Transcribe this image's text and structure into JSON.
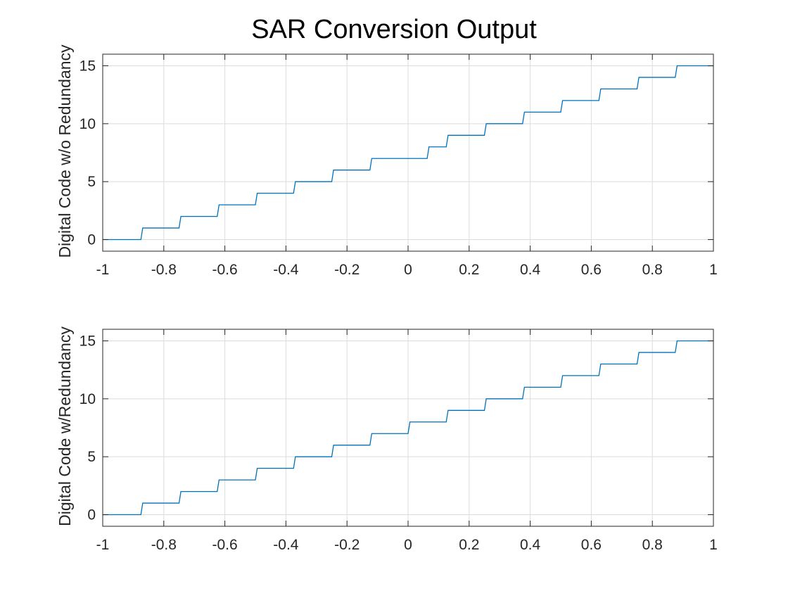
{
  "title": "SAR Conversion Output",
  "colors": {
    "series": "#0072bd",
    "grid": "#dcdcdc",
    "axes": "#262626",
    "background": "#ffffff"
  },
  "chart_data": [
    {
      "type": "line",
      "ylabel": "Digital Code w/o Redundancy",
      "xlim": [
        -1,
        1
      ],
      "ylim": [
        -1,
        16
      ],
      "xticks": [
        -1,
        -0.8,
        -0.6,
        -0.4,
        -0.2,
        0,
        0.2,
        0.4,
        0.6,
        0.8,
        1
      ],
      "xtick_labels": [
        "-1",
        "-0.8",
        "-0.6",
        "-0.4",
        "-0.2",
        "0",
        "0.2",
        "0.4",
        "0.6",
        "0.8",
        "1"
      ],
      "yticks": [
        0,
        5,
        10,
        15
      ],
      "ytick_labels": [
        "0",
        "5",
        "10",
        "15"
      ],
      "grid": true,
      "transitions_x": [
        -0.875,
        -0.75,
        -0.625,
        -0.5,
        -0.375,
        -0.25,
        -0.125,
        0.0625,
        0.125,
        0.25,
        0.375,
        0.5,
        0.625,
        0.75,
        0.875
      ],
      "transitions_y": [
        1,
        2,
        3,
        4,
        5,
        6,
        7,
        8,
        9,
        10,
        11,
        12,
        13,
        14,
        15
      ],
      "start_value": 0
    },
    {
      "type": "line",
      "ylabel": "Digital Code w/Redundancy",
      "xlim": [
        -1,
        1
      ],
      "ylim": [
        -1,
        16
      ],
      "xticks": [
        -1,
        -0.8,
        -0.6,
        -0.4,
        -0.2,
        0,
        0.2,
        0.4,
        0.6,
        0.8,
        1
      ],
      "xtick_labels": [
        "-1",
        "-0.8",
        "-0.6",
        "-0.4",
        "-0.2",
        "0",
        "0.2",
        "0.4",
        "0.6",
        "0.8",
        "1"
      ],
      "yticks": [
        0,
        5,
        10,
        15
      ],
      "ytick_labels": [
        "0",
        "5",
        "10",
        "15"
      ],
      "grid": true,
      "transitions_x": [
        -0.875,
        -0.75,
        -0.625,
        -0.5,
        -0.375,
        -0.25,
        -0.125,
        0,
        0.125,
        0.25,
        0.375,
        0.5,
        0.625,
        0.75,
        0.875
      ],
      "transitions_y": [
        1,
        2,
        3,
        4,
        5,
        6,
        7,
        8,
        9,
        10,
        11,
        12,
        13,
        14,
        15
      ],
      "start_value": 0
    }
  ]
}
